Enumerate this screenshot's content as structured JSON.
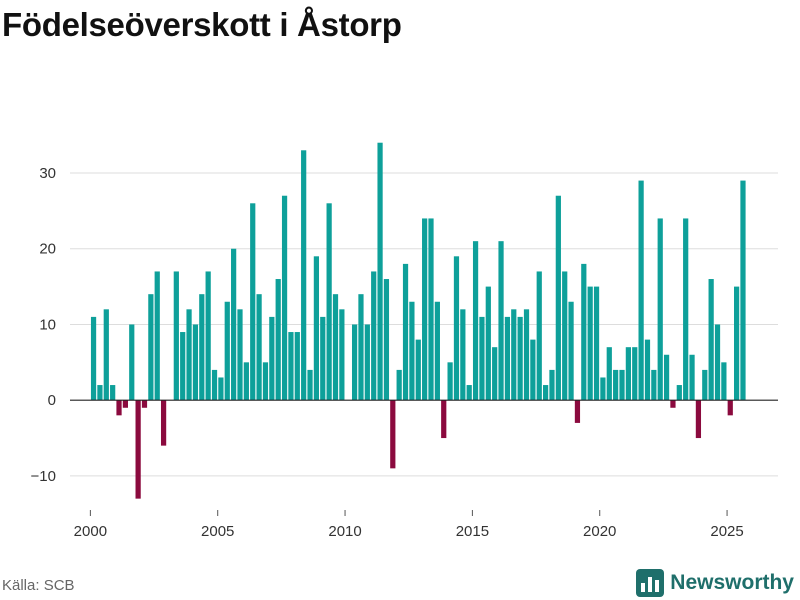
{
  "header": {
    "title": "Födelseöverskott i Åstorp"
  },
  "footer": {
    "source": "Källa: SCB",
    "brand": "Newsworthy"
  },
  "colors": {
    "positive": "#0ea09a",
    "negative": "#8b0a3e",
    "grid": "#dddddd",
    "axis": "#222222",
    "brand": "#1f6f6b"
  },
  "icons": {
    "brand_logo": "bar-chart-logo-icon"
  },
  "chart_data": {
    "type": "bar",
    "title": "Födelseöverskott i Åstorp",
    "xlabel": "",
    "ylabel": "",
    "granularity": "quarterly",
    "x_start": 2000.0,
    "x_step": 0.25,
    "xlim": [
      1999.2,
      2027.0
    ],
    "ylim": [
      -14.5,
      37
    ],
    "y_ticks": [
      -10,
      0,
      10,
      20,
      30
    ],
    "y_tick_labels": [
      "−10",
      "0",
      "10",
      "20",
      "30"
    ],
    "x_ticks": [
      2000,
      2005,
      2010,
      2015,
      2020,
      2025
    ],
    "x_tick_labels": [
      "2000",
      "2005",
      "2010",
      "2015",
      "2020",
      "2025"
    ],
    "grid": true,
    "values": [
      11,
      2,
      12,
      2,
      -2,
      -1,
      10,
      -13,
      -1,
      14,
      17,
      -6,
      0,
      17,
      9,
      12,
      10,
      14,
      17,
      4,
      3,
      13,
      20,
      12,
      5,
      26,
      14,
      5,
      11,
      16,
      27,
      9,
      9,
      33,
      4,
      19,
      11,
      26,
      14,
      12,
      0,
      10,
      14,
      10,
      17,
      34,
      16,
      -9,
      4,
      18,
      13,
      8,
      24,
      24,
      13,
      -5,
      5,
      19,
      12,
      2,
      21,
      11,
      15,
      7,
      21,
      11,
      12,
      11,
      12,
      8,
      17,
      2,
      4,
      27,
      17,
      13,
      -3,
      18,
      15,
      15,
      3,
      7,
      4,
      4,
      7,
      7,
      29,
      8,
      4,
      24,
      6,
      -1,
      2,
      24,
      6,
      -5,
      4,
      16,
      10,
      5,
      -2,
      15,
      29
    ]
  }
}
